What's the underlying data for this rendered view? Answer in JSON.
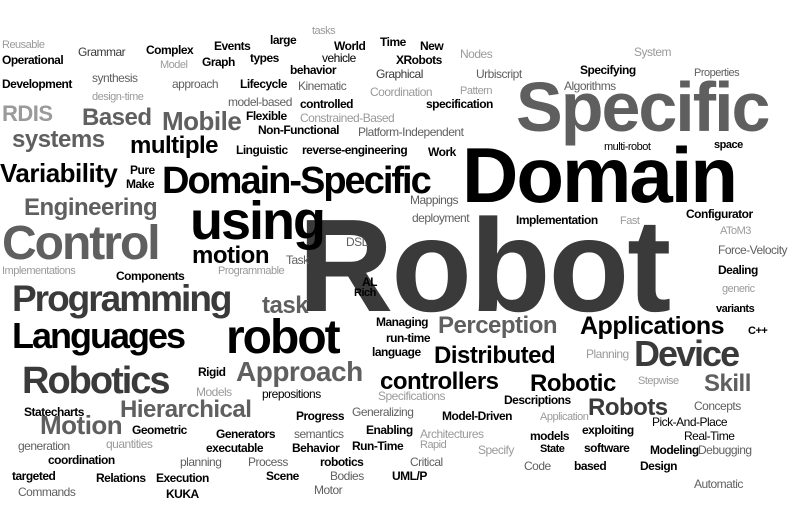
{
  "words": [
    {
      "text": "Robot",
      "tone": "dgrey"
    },
    {
      "text": "Domain",
      "tone": "black"
    },
    {
      "text": "Specific",
      "tone": "grey"
    },
    {
      "text": "Domain-Specific",
      "tone": "black"
    },
    {
      "text": "Control",
      "tone": "grey"
    },
    {
      "text": "using",
      "tone": "black"
    },
    {
      "text": "Programming",
      "tone": "dgrey"
    },
    {
      "text": "Languages",
      "tone": "black"
    },
    {
      "text": "robot",
      "tone": "black"
    },
    {
      "text": "Robotics",
      "tone": "dgrey"
    },
    {
      "text": "Device",
      "tone": "dgrey"
    },
    {
      "text": "Approach",
      "tone": "grey"
    },
    {
      "text": "Hierarchical",
      "tone": "grey"
    },
    {
      "text": "Motion",
      "tone": "grey"
    },
    {
      "text": "Perception",
      "tone": "grey"
    },
    {
      "text": "Applications",
      "tone": "black"
    },
    {
      "text": "Distributed",
      "tone": "black"
    },
    {
      "text": "controllers",
      "tone": "black"
    },
    {
      "text": "Robotic",
      "tone": "black"
    },
    {
      "text": "Robots",
      "tone": "dgrey"
    },
    {
      "text": "Skill",
      "tone": "grey"
    },
    {
      "text": "Variability",
      "tone": "black"
    },
    {
      "text": "Engineering",
      "tone": "grey"
    },
    {
      "text": "motion",
      "tone": "black"
    },
    {
      "text": "task",
      "tone": "grey"
    },
    {
      "text": "Based",
      "tone": "grey"
    },
    {
      "text": "Mobile",
      "tone": "grey"
    },
    {
      "text": "systems",
      "tone": "grey"
    },
    {
      "text": "multiple",
      "tone": "black"
    },
    {
      "text": "RDIS",
      "tone": "lgrey"
    },
    {
      "text": "Reusable",
      "tone": "lgrey"
    },
    {
      "text": "Operational",
      "tone": "black"
    },
    {
      "text": "Development",
      "tone": "black"
    },
    {
      "text": "Grammar",
      "tone": "dgrey"
    },
    {
      "text": "Complex",
      "tone": "black"
    },
    {
      "text": "Events",
      "tone": "black"
    },
    {
      "text": "large",
      "tone": "black"
    },
    {
      "text": "tasks",
      "tone": "lgrey"
    },
    {
      "text": "World",
      "tone": "black"
    },
    {
      "text": "Time",
      "tone": "black"
    },
    {
      "text": "New",
      "tone": "black"
    },
    {
      "text": "Nodes",
      "tone": "lgrey"
    },
    {
      "text": "System",
      "tone": "lgrey"
    },
    {
      "text": "Model",
      "tone": "lgrey"
    },
    {
      "text": "Graph",
      "tone": "black"
    },
    {
      "text": "types",
      "tone": "black"
    },
    {
      "text": "vehicle",
      "tone": "black"
    },
    {
      "text": "XRobots",
      "tone": "black"
    },
    {
      "text": "behavior",
      "tone": "black"
    },
    {
      "text": "Graphical",
      "tone": "dgrey"
    },
    {
      "text": "Urbiscript",
      "tone": "grey"
    },
    {
      "text": "Specifying",
      "tone": "black"
    },
    {
      "text": "Properties",
      "tone": "grey"
    },
    {
      "text": "synthesis",
      "tone": "grey"
    },
    {
      "text": "approach",
      "tone": "grey"
    },
    {
      "text": "Lifecycle",
      "tone": "black"
    },
    {
      "text": "Kinematic",
      "tone": "grey"
    },
    {
      "text": "Coordination",
      "tone": "lgrey"
    },
    {
      "text": "Pattern",
      "tone": "lgrey"
    },
    {
      "text": "Algorithms",
      "tone": "grey"
    },
    {
      "text": "design-time",
      "tone": "lgrey"
    },
    {
      "text": "model-based",
      "tone": "grey"
    },
    {
      "text": "controlled",
      "tone": "black"
    },
    {
      "text": "specification",
      "tone": "black"
    },
    {
      "text": "Flexible",
      "tone": "black"
    },
    {
      "text": "Constrained-Based",
      "tone": "lgrey"
    },
    {
      "text": "Non-Functional",
      "tone": "black"
    },
    {
      "text": "Platform-Independent",
      "tone": "grey"
    },
    {
      "text": "Linguistic",
      "tone": "black"
    },
    {
      "text": "reverse-engineering",
      "tone": "black"
    },
    {
      "text": "Work",
      "tone": "black"
    },
    {
      "text": "multi-robot",
      "tone": "black"
    },
    {
      "text": "space",
      "tone": "black"
    },
    {
      "text": "Pure",
      "tone": "black"
    },
    {
      "text": "Make",
      "tone": "black"
    },
    {
      "text": "Mappings",
      "tone": "grey"
    },
    {
      "text": "deployment",
      "tone": "grey"
    },
    {
      "text": "Implementation",
      "tone": "black"
    },
    {
      "text": "Fast",
      "tone": "lgrey"
    },
    {
      "text": "Configurator",
      "tone": "black"
    },
    {
      "text": "AToM3",
      "tone": "lgrey"
    },
    {
      "text": "DSL",
      "tone": "grey"
    },
    {
      "text": "Force-Velocity",
      "tone": "grey"
    },
    {
      "text": "Task",
      "tone": "grey"
    },
    {
      "text": "Implementations",
      "tone": "lgrey"
    },
    {
      "text": "Components",
      "tone": "black"
    },
    {
      "text": "Programmable",
      "tone": "lgrey"
    },
    {
      "text": "Dealing",
      "tone": "black"
    },
    {
      "text": "generic",
      "tone": "lgrey"
    },
    {
      "text": "AL",
      "tone": "black"
    },
    {
      "text": "Rich",
      "tone": "black"
    },
    {
      "text": "variants",
      "tone": "black"
    },
    {
      "text": "C++",
      "tone": "black"
    },
    {
      "text": "Managing",
      "tone": "black"
    },
    {
      "text": "run-time",
      "tone": "black"
    },
    {
      "text": "language",
      "tone": "black"
    },
    {
      "text": "Planning",
      "tone": "lgrey"
    },
    {
      "text": "Rigid",
      "tone": "black"
    },
    {
      "text": "Models",
      "tone": "lgrey"
    },
    {
      "text": "prepositions",
      "tone": "black"
    },
    {
      "text": "Stepwise",
      "tone": "lgrey"
    },
    {
      "text": "Statecharts",
      "tone": "black"
    },
    {
      "text": "Specifications",
      "tone": "lgrey"
    },
    {
      "text": "Descriptions",
      "tone": "black"
    },
    {
      "text": "Concepts",
      "tone": "grey"
    },
    {
      "text": "Progress",
      "tone": "black"
    },
    {
      "text": "Generalizing",
      "tone": "grey"
    },
    {
      "text": "Model-Driven",
      "tone": "black"
    },
    {
      "text": "Application",
      "tone": "lgrey"
    },
    {
      "text": "Pick-And-Place",
      "tone": "black"
    },
    {
      "text": "generation",
      "tone": "grey"
    },
    {
      "text": "quantities",
      "tone": "lgrey"
    },
    {
      "text": "Geometric",
      "tone": "black"
    },
    {
      "text": "Generators",
      "tone": "black"
    },
    {
      "text": "semantics",
      "tone": "grey"
    },
    {
      "text": "Enabling",
      "tone": "black"
    },
    {
      "text": "Architectures",
      "tone": "lgrey"
    },
    {
      "text": "models",
      "tone": "black"
    },
    {
      "text": "exploiting",
      "tone": "black"
    },
    {
      "text": "Real-Time",
      "tone": "black"
    },
    {
      "text": "coordination",
      "tone": "black"
    },
    {
      "text": "executable",
      "tone": "black"
    },
    {
      "text": "Behavior",
      "tone": "black"
    },
    {
      "text": "Run-Time",
      "tone": "black"
    },
    {
      "text": "Rapid",
      "tone": "lgrey"
    },
    {
      "text": "Specify",
      "tone": "lgrey"
    },
    {
      "text": "State",
      "tone": "black"
    },
    {
      "text": "software",
      "tone": "black"
    },
    {
      "text": "Modeling",
      "tone": "black"
    },
    {
      "text": "Debugging",
      "tone": "grey"
    },
    {
      "text": "targeted",
      "tone": "black"
    },
    {
      "text": "Relations",
      "tone": "black"
    },
    {
      "text": "planning",
      "tone": "grey"
    },
    {
      "text": "Process",
      "tone": "grey"
    },
    {
      "text": "robotics",
      "tone": "black"
    },
    {
      "text": "Critical",
      "tone": "grey"
    },
    {
      "text": "Code",
      "tone": "grey"
    },
    {
      "text": "based",
      "tone": "black"
    },
    {
      "text": "Design",
      "tone": "black"
    },
    {
      "text": "Execution",
      "tone": "black"
    },
    {
      "text": "Scene",
      "tone": "black"
    },
    {
      "text": "Bodies",
      "tone": "grey"
    },
    {
      "text": "UML/P",
      "tone": "black"
    },
    {
      "text": "Commands",
      "tone": "grey"
    },
    {
      "text": "KUKA",
      "tone": "black"
    },
    {
      "text": "Motor",
      "tone": "grey"
    },
    {
      "text": "Automatic",
      "tone": "grey"
    }
  ]
}
